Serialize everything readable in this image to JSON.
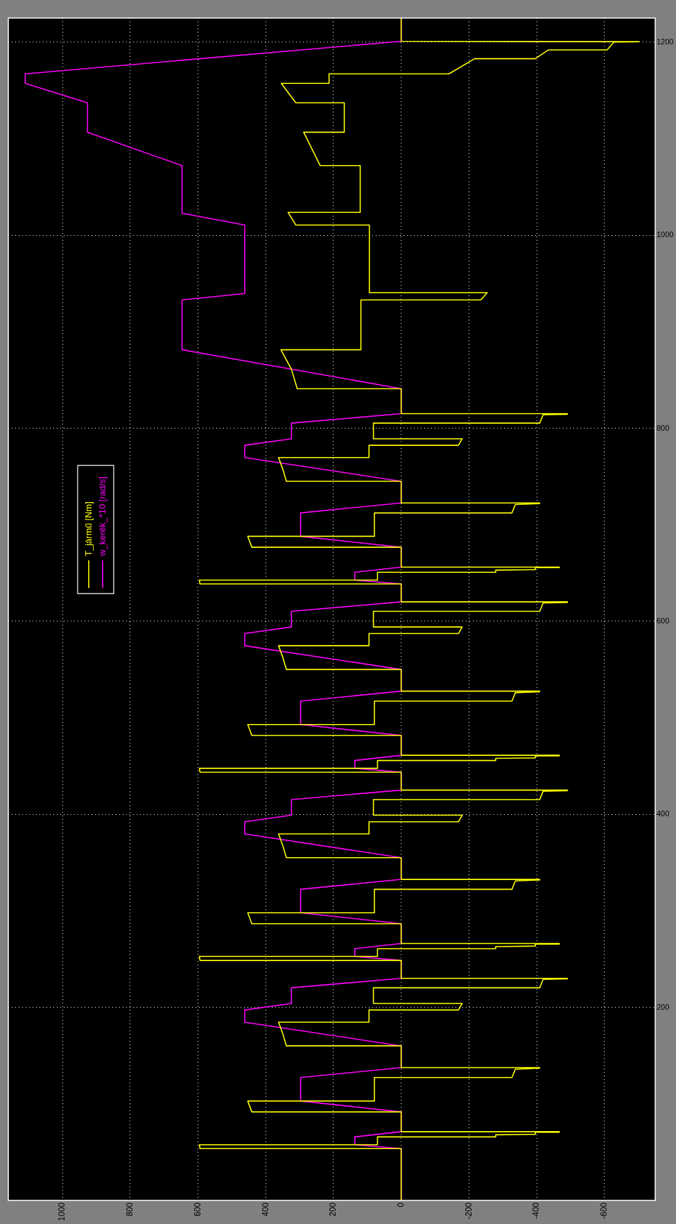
{
  "chart_data": {
    "type": "line",
    "orientation": "horizontal",
    "xlim": [
      1160,
      -750
    ],
    "ylim": [
      0,
      1225
    ],
    "xticks": [
      1000,
      800,
      600,
      400,
      200,
      0,
      -200,
      -400,
      -600
    ],
    "yticks": [
      200,
      400,
      600,
      800,
      1000,
      1200
    ],
    "grid": true,
    "legend": "left",
    "marker": "none",
    "line_style": "solid",
    "series": [
      {
        "name": "T_jármű [Nm]",
        "color": "#ffff00",
        "x": [
          0,
          53.7,
          53.7,
          57.7,
          57.7,
          65.8,
          65.8,
          68,
          68.5,
          70.6,
          70.6,
          71.2,
          71.2,
          91.7,
          91.7,
          103,
          103,
          127.3,
          127.3,
          136,
          137,
          137.6,
          137.6,
          160.1,
          160.1,
          172,
          184.7,
          184.7,
          197.3,
          197.3,
          204.1,
          204.1,
          220.3,
          220.3,
          229,
          229.5,
          230.1,
          230.1,
          248.7,
          248.7,
          252.7,
          252.7,
          260.8,
          260.8,
          263,
          263.5,
          265.6,
          265.6,
          266.2,
          266.2,
          286.7,
          286.7,
          298,
          298,
          322.3,
          322.3,
          331,
          332,
          332.6,
          332.6,
          355.1,
          355.1,
          367,
          379.7,
          379.7,
          392.3,
          392.3,
          399.1,
          399.1,
          415.3,
          415.3,
          424,
          424.5,
          425.1,
          425.1,
          443.7,
          443.7,
          447.7,
          447.7,
          455.8,
          455.8,
          458,
          458.5,
          460.6,
          460.6,
          461.2,
          461.2,
          481.7,
          481.7,
          493,
          493,
          517.3,
          517.3,
          526,
          527,
          527.6,
          527.6,
          550.1,
          550.1,
          562,
          574.7,
          574.7,
          587.3,
          587.3,
          594.1,
          594.1,
          610.3,
          610.3,
          619,
          619.5,
          620.1,
          620.1,
          638.7,
          638.7,
          642.7,
          642.7,
          650.8,
          650.8,
          653,
          653.5,
          655.6,
          655.6,
          656.2,
          656.2,
          676.7,
          676.7,
          688,
          688,
          712.3,
          712.3,
          721,
          722,
          722.6,
          722.6,
          745.1,
          745.1,
          757,
          769.7,
          769.7,
          782.3,
          782.3,
          789.1,
          789.1,
          805.3,
          805.3,
          814,
          814.5,
          815.1,
          815.1,
          841,
          841,
          861,
          881.3,
          881.3,
          932.9,
          932.9,
          940.5,
          940.5,
          1010.5,
          1010.5,
          1023.6,
          1023.6,
          1072.1,
          1072.1,
          1106.7,
          1106.7,
          1137.2,
          1137.2,
          1157.3,
          1157.3,
          1167.2,
          1167.2,
          1182.9,
          1182.9,
          1191.9,
          1191.9,
          1200,
          1200.5,
          1200.9,
          1225
        ],
        "values": [
          0,
          0,
          594,
          596,
          70,
          70,
          -279,
          -279,
          -396,
          -396,
          -467,
          -467,
          0,
          0,
          441,
          453,
          79,
          79,
          -327,
          -337,
          -409,
          -409,
          0,
          0,
          339,
          349,
          362,
          95,
          95,
          -169,
          -180,
          82,
          82,
          -409,
          -419,
          -491,
          -491,
          0,
          0,
          594,
          596,
          70,
          70,
          -279,
          -279,
          -396,
          -396,
          -467,
          -467,
          0,
          0,
          441,
          453,
          79,
          79,
          -327,
          -337,
          -409,
          -409,
          0,
          0,
          339,
          349,
          362,
          95,
          95,
          -169,
          -180,
          82,
          82,
          -409,
          -419,
          -491,
          -491,
          0,
          0,
          594,
          596,
          70,
          70,
          -279,
          -279,
          -396,
          -396,
          -467,
          -467,
          0,
          0,
          441,
          453,
          79,
          79,
          -327,
          -337,
          -409,
          -409,
          0,
          0,
          339,
          349,
          362,
          95,
          95,
          -169,
          -180,
          82,
          82,
          -409,
          -419,
          -491,
          -491,
          0,
          0,
          594,
          596,
          70,
          70,
          -279,
          -279,
          -396,
          -396,
          -467,
          -467,
          0,
          0,
          441,
          453,
          79,
          79,
          -327,
          -337,
          -409,
          -409,
          0,
          0,
          339,
          349,
          362,
          95,
          95,
          -169,
          -180,
          82,
          82,
          -409,
          -419,
          -491,
          -491,
          0,
          0,
          307,
          324,
          355,
          119,
          119,
          -235,
          -254,
          94,
          94,
          311,
          334,
          121,
          121,
          239,
          288,
          168,
          168,
          311,
          354,
          213,
          213,
          -141,
          -217,
          -396,
          -434,
          -608,
          -628,
          -702,
          0,
          0
        ]
      },
      {
        "name": "w_kerék_*10 [rad/s]",
        "color": "#ff00ff",
        "x": [
          0,
          53.7,
          57.7,
          65.8,
          71.2,
          91.7,
          103,
          127.3,
          137.6,
          160.1,
          184.7,
          197.3,
          204.1,
          220.3,
          230.1,
          248.7,
          252.7,
          260.8,
          266.2,
          286.7,
          298,
          322.3,
          332.6,
          355.1,
          379.7,
          392.3,
          399.1,
          415.3,
          425.1,
          443.7,
          447.7,
          455.8,
          461.2,
          481.7,
          493,
          517.3,
          527.6,
          550.1,
          574.7,
          587.3,
          594.1,
          610.3,
          620.1,
          638.7,
          642.7,
          650.8,
          656.2,
          676.7,
          688,
          712.3,
          722.6,
          745.1,
          769.7,
          782.3,
          789.1,
          805.3,
          815.1,
          841,
          881.3,
          932.9,
          939.6,
          1010.5,
          1022.7,
          1072.1,
          1106.7,
          1137.2,
          1157.3,
          1167.2,
          1200.9,
          1225
        ],
        "values": [
          0,
          0,
          137,
          137,
          0,
          0,
          297,
          297,
          0,
          0,
          462,
          462,
          324,
          324,
          0,
          0,
          137,
          137,
          0,
          0,
          297,
          297,
          0,
          0,
          462,
          462,
          324,
          324,
          0,
          0,
          137,
          137,
          0,
          0,
          297,
          297,
          0,
          0,
          462,
          462,
          324,
          324,
          0,
          0,
          137,
          137,
          0,
          0,
          297,
          297,
          0,
          0,
          462,
          462,
          324,
          324,
          0,
          0,
          647,
          647,
          462,
          462,
          647,
          647,
          926,
          926,
          1110,
          1110,
          0,
          0
        ]
      }
    ]
  }
}
